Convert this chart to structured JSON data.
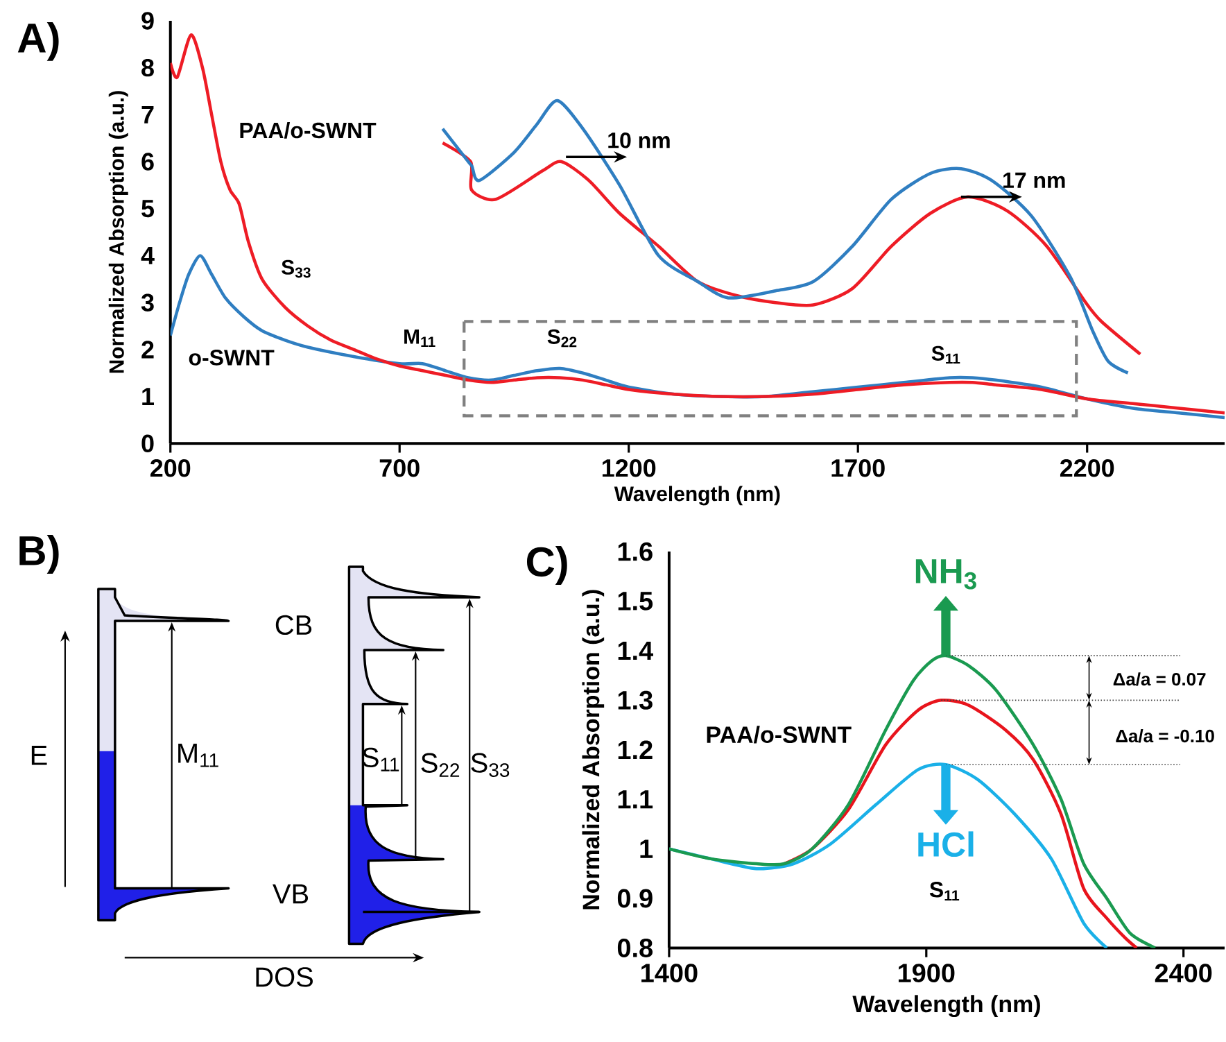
{
  "chart_data": [
    {
      "type": "line",
      "title": "A)",
      "xlabel": "Wavelength (nm)",
      "ylabel": "Normalized Absorption (a.u.)",
      "xlim": [
        200,
        2500
      ],
      "ylim": [
        0,
        9
      ],
      "xticks": [
        200,
        700,
        1200,
        1700,
        2200
      ],
      "yticks": [
        0,
        1,
        2,
        3,
        4,
        5,
        6,
        7,
        8,
        9
      ],
      "series": [
        {
          "color": "#ee1c25",
          "x": [
            200,
            215,
            245,
            270,
            290,
            310,
            330,
            350,
            370,
            400,
            450,
            500,
            550,
            600,
            650,
            700,
            750,
            800,
            850,
            900,
            950,
            1000,
            1050,
            1100,
            1150,
            1200,
            1300,
            1400,
            1500,
            1600,
            1700,
            1800,
            1900,
            1950,
            2000,
            2100,
            2200,
            2300,
            2400,
            2500
          ],
          "values": [
            8.1,
            7.8,
            8.7,
            8.0,
            7.0,
            6.0,
            5.4,
            5.1,
            4.3,
            3.5,
            2.9,
            2.5,
            2.2,
            2.0,
            1.8,
            1.65,
            1.55,
            1.45,
            1.35,
            1.3,
            1.35,
            1.4,
            1.4,
            1.35,
            1.25,
            1.15,
            1.05,
            1.0,
            1.0,
            1.05,
            1.15,
            1.25,
            1.3,
            1.3,
            1.25,
            1.15,
            0.95,
            0.85,
            0.75,
            0.65
          ]
        },
        {
          "color": "#2f7ec1",
          "x": [
            200,
            220,
            240,
            265,
            290,
            320,
            360,
            400,
            450,
            500,
            600,
            700,
            750,
            800,
            850,
            900,
            950,
            1000,
            1050,
            1100,
            1150,
            1200,
            1300,
            1400,
            1500,
            1600,
            1700,
            1800,
            1900,
            1950,
            2000,
            2100,
            2200,
            2300,
            2400,
            2500
          ],
          "values": [
            2.3,
            3.0,
            3.6,
            4.0,
            3.6,
            3.1,
            2.7,
            2.4,
            2.2,
            2.05,
            1.85,
            1.7,
            1.7,
            1.55,
            1.4,
            1.35,
            1.45,
            1.55,
            1.6,
            1.5,
            1.35,
            1.2,
            1.05,
            1.0,
            1.0,
            1.1,
            1.2,
            1.3,
            1.4,
            1.4,
            1.35,
            1.2,
            0.95,
            0.75,
            0.65,
            0.55
          ]
        },
        {
          "color": "#2f7ec1",
          "x": [
            794,
            850,
            858,
            874,
            950,
            1000,
            1044,
            1100,
            1180,
            1265,
            1350,
            1417,
            1520,
            1603,
            1688,
            1773,
            1858,
            1925,
            1992,
            2078,
            2163,
            2212,
            2246,
            2289
          ],
          "values": [
            6.7,
            6.0,
            5.9,
            5.6,
            6.2,
            6.8,
            7.3,
            6.7,
            5.5,
            4.0,
            3.45,
            3.1,
            3.25,
            3.45,
            4.2,
            5.2,
            5.75,
            5.85,
            5.6,
            4.85,
            3.55,
            2.4,
            1.75,
            1.5
          ]
        },
        {
          "color": "#ee1c25",
          "x": [
            794,
            855,
            857,
            910,
            1011,
            1053,
            1113,
            1180,
            1265,
            1350,
            1435,
            1520,
            1603,
            1688,
            1773,
            1858,
            1940,
            2026,
            2112,
            2197,
            2231,
            2316
          ],
          "values": [
            6.4,
            6.0,
            5.4,
            5.2,
            5.8,
            6.0,
            5.6,
            4.9,
            4.2,
            3.45,
            3.15,
            3.0,
            2.95,
            3.3,
            4.2,
            4.9,
            5.25,
            4.95,
            4.2,
            3.0,
            2.6,
            1.9
          ]
        }
      ],
      "annotations": [
        "PAA/o-SWNT",
        "o-SWNT",
        "S$_{33}$",
        "M$_{11}$",
        "S$_{22}$",
        "S$_{11}$",
        {
          "text": "10 nm",
          "x": 1063,
          "y": 6.1
        },
        {
          "text": "17 nm",
          "x": 1925,
          "y": 5.25
        }
      ]
    },
    {
      "type": "other",
      "title": "B)",
      "annotations": [
        "E",
        "CB",
        "VB",
        "DOS",
        "M$_{11}$",
        "S$_{11}$",
        "S$_{22}$",
        "S$_{33}$"
      ]
    },
    {
      "type": "line",
      "title": "C)",
      "xlabel": "Wavelength (nm)",
      "ylabel": "Normalized Absorption (a.u.)",
      "xlim": [
        1400,
        2480
      ],
      "ylim": [
        0.8,
        1.6
      ],
      "xticks": [
        1400,
        1900,
        2400
      ],
      "yticks": [
        0.8,
        0.9,
        1,
        1.1,
        1.2,
        1.3,
        1.4,
        1.5,
        1.6
      ],
      "series": [
        {
          "name": "NH$_{3}$",
          "color": "#1a9a50",
          "x": [
            1400,
            1481,
            1570,
            1624,
            1678,
            1749,
            1821,
            1875,
            1911,
            1938,
            1982,
            2036,
            2108,
            2162,
            2206,
            2251,
            2296,
            2345
          ],
          "values": [
            1.0,
            0.98,
            0.97,
            0.97,
            1.0,
            1.09,
            1.24,
            1.34,
            1.38,
            1.39,
            1.37,
            1.32,
            1.21,
            1.1,
            0.97,
            0.9,
            0.83,
            0.8
          ]
        },
        {
          "color": "#e8141c",
          "x": [
            1624,
            1678,
            1749,
            1821,
            1884,
            1929,
            1982,
            2054,
            2108,
            2162,
            2206,
            2251,
            2287,
            2309
          ],
          "values": [
            0.97,
            1.0,
            1.08,
            1.21,
            1.28,
            1.3,
            1.29,
            1.24,
            1.18,
            1.07,
            0.92,
            0.86,
            0.82,
            0.8
          ]
        },
        {
          "name": "HCl",
          "color": "#1ab0e8",
          "x": [
            1400,
            1481,
            1570,
            1642,
            1714,
            1803,
            1884,
            1938,
            2000,
            2072,
            2143,
            2206,
            2251
          ],
          "values": [
            1.0,
            0.98,
            0.96,
            0.97,
            1.01,
            1.09,
            1.16,
            1.17,
            1.14,
            1.07,
            0.98,
            0.85,
            0.8
          ]
        }
      ],
      "ref_lines": [
        {
          "axis": "y",
          "value": 1.39,
          "color": "#404040",
          "line_style": "dotted"
        },
        {
          "axis": "y",
          "value": 1.3,
          "color": "#404040",
          "line_style": "dotted"
        },
        {
          "axis": "y",
          "value": 1.17,
          "color": "#404040",
          "line_style": "dotted"
        }
      ],
      "annotations": [
        "PAA/o-SWNT",
        "S$_{11}$",
        "Δa/a = 0.07",
        "Δa/a = -0.10"
      ]
    }
  ]
}
